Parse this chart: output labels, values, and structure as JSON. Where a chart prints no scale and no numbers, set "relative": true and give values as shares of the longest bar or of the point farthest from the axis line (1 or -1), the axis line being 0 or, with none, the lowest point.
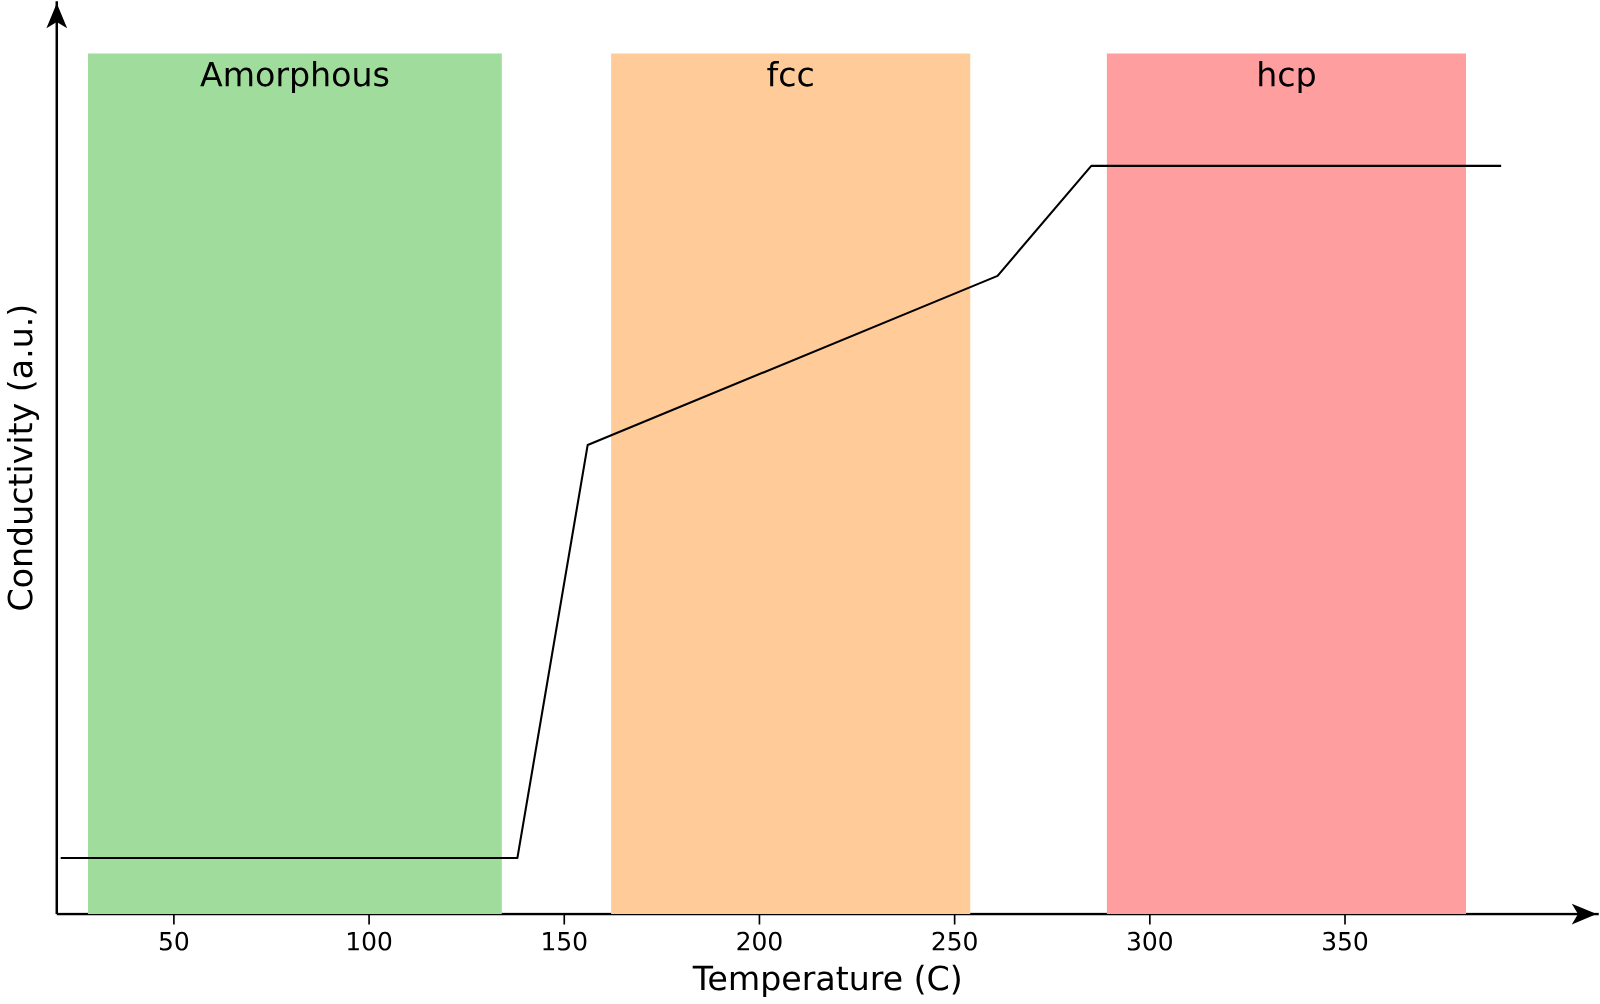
{
  "chart_data": {
    "type": "line",
    "xlabel": "Temperature (C)",
    "ylabel": "Conductivity (a.u.)",
    "relative": true,
    "x": [
      21,
      138,
      156,
      261,
      285,
      390
    ],
    "series": [
      {
        "color": "#000000",
        "values": [
          0.075,
          0.075,
          0.627,
          0.853,
          1,
          1
        ]
      }
    ],
    "xlim": [
      20,
      415
    ],
    "xticks": [
      50,
      100,
      150,
      200,
      250,
      300,
      350
    ],
    "grid": false,
    "marker": "none",
    "line_style": "solid",
    "bands": [
      {
        "axis": "x",
        "from": 28,
        "to": 134,
        "label": "Amorphous",
        "color": "#a0dc9c"
      },
      {
        "axis": "x",
        "from": 162,
        "to": 254,
        "label": "fcc",
        "color": "#ffcc99"
      },
      {
        "axis": "x",
        "from": 289,
        "to": 381,
        "label": "hcp",
        "color": "#ff9e9e"
      }
    ]
  }
}
